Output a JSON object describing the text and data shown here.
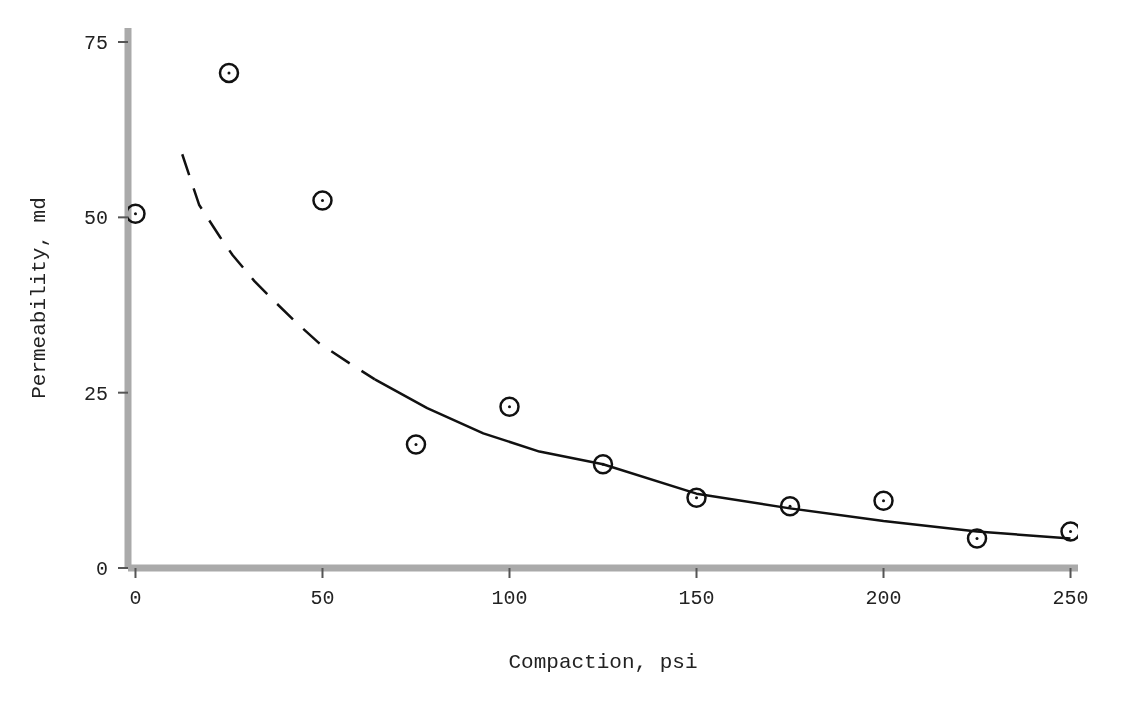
{
  "chart_data": {
    "type": "scatter",
    "xlabel": "Compaction, psi",
    "ylabel": "Permeability, md",
    "xlim": [
      -2,
      252
    ],
    "ylim": [
      0,
      77
    ],
    "xticks": [
      0,
      50,
      100,
      150,
      200,
      250
    ],
    "yticks": [
      0,
      25,
      50,
      75
    ],
    "grid": false,
    "marker": "circle",
    "series": [
      {
        "color": "#111111",
        "x": [
          0,
          25,
          50,
          75,
          100,
          125,
          150,
          175,
          200,
          225,
          250
        ],
        "values": [
          50.5,
          70.6,
          52.4,
          17.6,
          23,
          14.8,
          10,
          8.8,
          9.6,
          4.2,
          5.2
        ]
      },
      {
        "type": "line",
        "color": "#111111",
        "marker": "none",
        "line_style": "dashed",
        "x": [
          12.5,
          17,
          22.6,
          26,
          31.8,
          37,
          43,
          49,
          57.5,
          64
        ],
        "values": [
          59,
          51.8,
          47.2,
          44.6,
          40.9,
          38.1,
          35,
          32.1,
          29.1,
          26.9
        ]
      },
      {
        "type": "line",
        "color": "#111111",
        "marker": "none",
        "line_style": "solid",
        "x": [
          64,
          78,
          93,
          108,
          125,
          150,
          175,
          200,
          225,
          250
        ],
        "values": [
          26.9,
          22.8,
          19.2,
          16.6,
          14.8,
          10.6,
          8.5,
          6.7,
          5.2,
          4.2
        ]
      }
    ]
  }
}
